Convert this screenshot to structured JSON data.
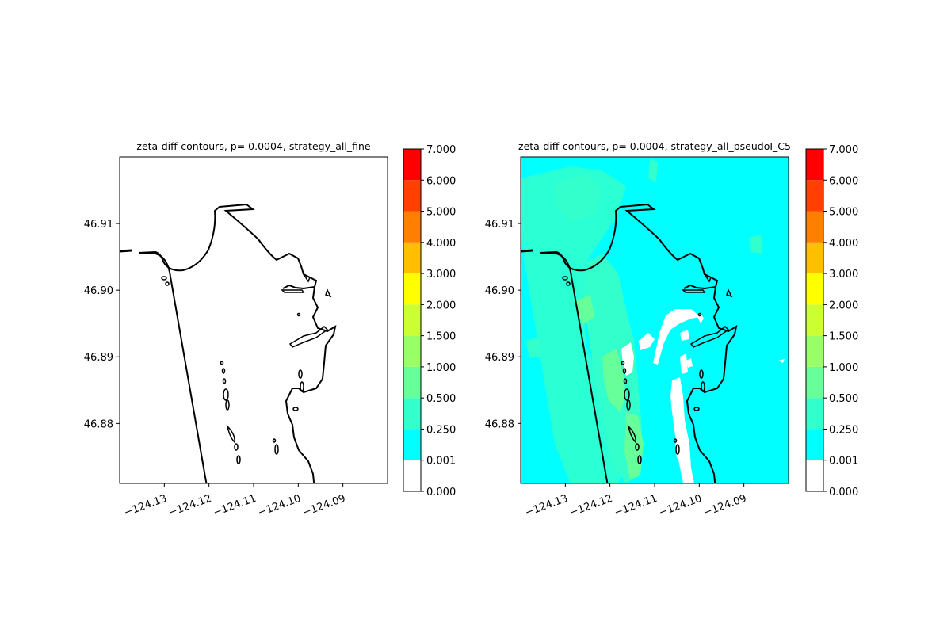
{
  "chart_data": [
    {
      "type": "contour_map",
      "title": "zeta-diff-contours, p= 0.0004, strategy_all_fine",
      "xlabel": "",
      "ylabel": "",
      "xlim": [
        -124.14,
        -124.08
      ],
      "ylim": [
        46.871,
        46.92
      ],
      "x_ticks": [
        -124.13,
        -124.12,
        -124.11,
        -124.1,
        -124.09
      ],
      "x_tick_labels": [
        "−124.13",
        "−124.12",
        "−124.11",
        "−124.10",
        "−124.09"
      ],
      "y_ticks": [
        46.88,
        46.89,
        46.9,
        46.91
      ],
      "y_tick_labels": [
        "46.88",
        "46.89",
        "46.90",
        "46.91"
      ],
      "field": "none",
      "colorbar": {
        "levels": [
          0.0,
          0.001,
          0.25,
          0.5,
          1.0,
          1.5,
          2.0,
          3.0,
          4.0,
          5.0,
          6.0,
          7.0
        ],
        "labels": [
          "0.000",
          "0.001",
          "0.250",
          "0.500",
          "1.000",
          "1.500",
          "2.000",
          "3.000",
          "4.000",
          "5.000",
          "6.000",
          "7.000"
        ],
        "colors": [
          "#ffffff",
          "#00ffff",
          "#33ffcc",
          "#66ff99",
          "#99ff66",
          "#ccff33",
          "#ffff00",
          "#ffbf00",
          "#ff8000",
          "#ff4000",
          "#ff0000"
        ]
      }
    },
    {
      "type": "contour_map",
      "title": "zeta-diff-contours, p= 0.0004, strategy_all_pseudoI_C5",
      "xlabel": "",
      "ylabel": "",
      "xlim": [
        -124.14,
        -124.08
      ],
      "ylim": [
        46.871,
        46.92
      ],
      "x_ticks": [
        -124.13,
        -124.12,
        -124.11,
        -124.1,
        -124.09
      ],
      "x_tick_labels": [
        "−124.13",
        "−124.12",
        "−124.11",
        "−124.10",
        "−124.09"
      ],
      "y_ticks": [
        46.88,
        46.89,
        46.9,
        46.91
      ],
      "y_tick_labels": [
        "46.88",
        "46.89",
        "46.90",
        "46.91"
      ],
      "field": "mostly 0.001-0.250 (cyan) with patches of 0.250-1.000 and dry (white) areas east of the channel",
      "colorbar": {
        "levels": [
          0.0,
          0.001,
          0.25,
          0.5,
          1.0,
          1.5,
          2.0,
          3.0,
          4.0,
          5.0,
          6.0,
          7.0
        ],
        "labels": [
          "0.000",
          "0.001",
          "0.250",
          "0.500",
          "1.000",
          "1.500",
          "2.000",
          "3.000",
          "4.000",
          "5.000",
          "6.000",
          "7.000"
        ],
        "colors": [
          "#ffffff",
          "#00ffff",
          "#33ffcc",
          "#66ff99",
          "#99ff66",
          "#ccff33",
          "#ffff00",
          "#ffbf00",
          "#ff8000",
          "#ff4000",
          "#ff0000"
        ]
      }
    }
  ]
}
